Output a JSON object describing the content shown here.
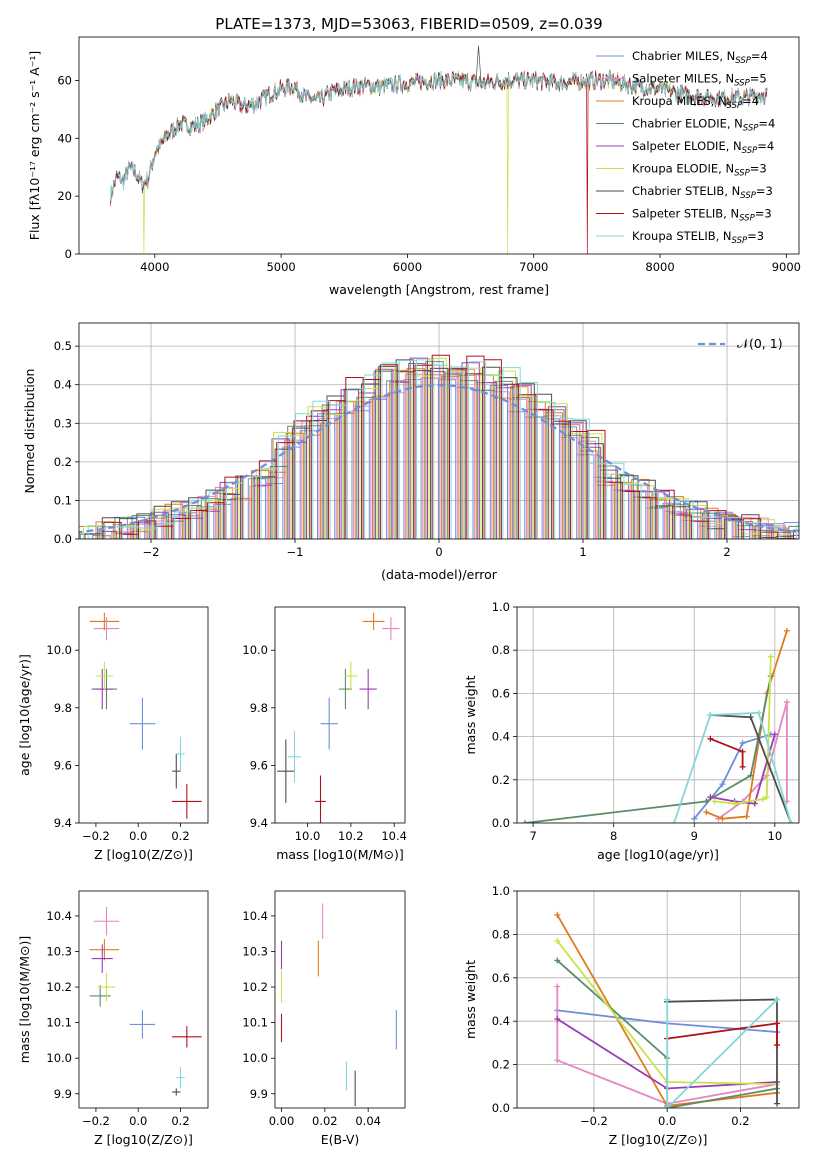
{
  "colors": {
    "Chabrier MILES": "#6f8fdc",
    "Salpeter MILES": "#e586c0",
    "Kroupa MILES": "#e07b1f",
    "Chabrier ELODIE": "#5b8c68",
    "Salpeter ELODIE": "#9b3bb8",
    "Kroupa ELODIE": "#c8e34a",
    "Chabrier STELIB": "#4d4d4d",
    "Salpeter STELIB": "#b0121a",
    "Kroupa STELIB": "#82d8db",
    "gaussian": "#6f8fdc"
  },
  "chart_data": [
    {
      "id": "spectrum",
      "type": "line",
      "title": "PLATE=1373, MJD=53063, FIBERID=0509, z=0.039",
      "xlabel": "wavelength [Angstrom, rest frame]",
      "ylabel": "Flux [fλ10⁻¹⁷ erg cm⁻² s⁻¹ A⁻¹]",
      "xlim": [
        3400,
        9100
      ],
      "ylim": [
        0,
        75
      ],
      "xticks": [
        4000,
        5000,
        6000,
        7000,
        8000,
        9000
      ],
      "yticks": [
        0,
        20,
        40,
        60
      ],
      "legend_position": "top-right",
      "legend": [
        "Chabrier MILES, N_SSP=4",
        "Salpeter MILES, N_SSP=5",
        "Kroupa MILES, N_SSP=4",
        "Chabrier ELODIE, N_SSP=4",
        "Salpeter ELODIE, N_SSP=4",
        "Kroupa ELODIE, N_SSP=3",
        "Chabrier STELIB, N_SSP=3",
        "Salpeter STELIB, N_SSP=3",
        "Kroupa STELIB, N_SSP=3"
      ],
      "continuum": {
        "x": [
          3650,
          3700,
          3750,
          3800,
          3850,
          3900,
          3950,
          4000,
          4100,
          4200,
          4300,
          4400,
          4500,
          4600,
          4700,
          4800,
          4900,
          5000,
          5100,
          5200,
          5300,
          5400,
          5500,
          5600,
          5800,
          6000,
          6200,
          6400,
          6600,
          6800,
          7000,
          7200,
          7400,
          7600,
          7800,
          8000,
          8200,
          8400,
          8600,
          8850
        ],
        "y": [
          20,
          27,
          25,
          30,
          28,
          24,
          26,
          35,
          41,
          45,
          44,
          46,
          50,
          53,
          51,
          52,
          55,
          57,
          58,
          54,
          53,
          56,
          57,
          58,
          58,
          59,
          60,
          60,
          59,
          60,
          60,
          59,
          60,
          60,
          58,
          57,
          55,
          54,
          54,
          55
        ]
      },
      "dropouts": [
        {
          "series": "Kroupa ELODIE",
          "from_x": 3910
        },
        {
          "series": "Kroupa ELODIE",
          "from_x": 6790
        },
        {
          "series": "Salpeter STELIB",
          "from_x": 7420
        }
      ],
      "spikes": [
        {
          "x": 6563,
          "y": 72
        }
      ]
    },
    {
      "id": "residuals",
      "type": "bar",
      "xlabel": "(data-model)/error",
      "ylabel": "Normed distribution",
      "xlim": [
        -2.5,
        2.5
      ],
      "ylim": [
        0,
        0.56
      ],
      "xticks": [
        -2,
        -1,
        0,
        1,
        2
      ],
      "yticks": [
        0.0,
        0.1,
        0.2,
        0.3,
        0.4,
        0.5
      ],
      "grid": true,
      "legend": [
        "𝒩(0, 1)"
      ],
      "legend_position": "top-right",
      "gaussian": {
        "mu": 0,
        "sigma": 1
      },
      "bin_width": 0.12
    },
    {
      "id": "age-vs-Z",
      "type": "scatter",
      "xlabel": "Z [log10(Z/Z⊙)]",
      "ylabel": "age  [log10(age/yr)]",
      "xlim": [
        -0.28,
        0.33
      ],
      "ylim": [
        9.4,
        10.15
      ],
      "xticks": [
        -0.2,
        0.0,
        0.2
      ],
      "yticks": [
        9.4,
        9.6,
        9.8,
        10.0
      ],
      "points": [
        {
          "series": "Chabrier MILES",
          "x": 0.02,
          "y": 9.745,
          "xerr": 0.06,
          "yerr": 0.09
        },
        {
          "series": "Salpeter MILES",
          "x": -0.15,
          "y": 10.075,
          "xerr": 0.06,
          "yerr": 0.04
        },
        {
          "series": "Kroupa MILES",
          "x": -0.16,
          "y": 10.1,
          "xerr": 0.07,
          "yerr": 0.03
        },
        {
          "series": "Chabrier ELODIE",
          "x": -0.15,
          "y": 9.865,
          "xerr": 0.05,
          "yerr": 0.07
        },
        {
          "series": "Salpeter ELODIE",
          "x": -0.17,
          "y": 9.865,
          "xerr": 0.05,
          "yerr": 0.07
        },
        {
          "series": "Kroupa ELODIE",
          "x": -0.16,
          "y": 9.91,
          "xerr": 0.04,
          "yerr": 0.05
        },
        {
          "series": "Chabrier STELIB",
          "x": 0.18,
          "y": 9.58,
          "xerr": 0.02,
          "yerr": 0.06
        },
        {
          "series": "Salpeter STELIB",
          "x": 0.23,
          "y": 9.475,
          "xerr": 0.07,
          "yerr": 0.06
        },
        {
          "series": "Kroupa STELIB",
          "x": 0.2,
          "y": 9.64,
          "xerr": 0.02,
          "yerr": 0.06
        }
      ]
    },
    {
      "id": "age-vs-mass",
      "type": "scatter",
      "xlabel": "mass [log10(M/M⊙)]",
      "xlim": [
        9.85,
        10.45
      ],
      "ylim": [
        9.4,
        10.15
      ],
      "xticks": [
        10.0,
        10.2,
        10.4
      ],
      "yticks": [
        9.4,
        9.6,
        9.8,
        10.0
      ],
      "points": [
        {
          "series": "Chabrier MILES",
          "x": 10.1,
          "y": 9.745,
          "xerr": 0.04,
          "yerr": 0.09
        },
        {
          "series": "Salpeter MILES",
          "x": 10.385,
          "y": 10.075,
          "xerr": 0.04,
          "yerr": 0.04
        },
        {
          "series": "Kroupa MILES",
          "x": 10.305,
          "y": 10.1,
          "xerr": 0.05,
          "yerr": 0.03
        },
        {
          "series": "Chabrier ELODIE",
          "x": 10.175,
          "y": 9.865,
          "xerr": 0.03,
          "yerr": 0.07
        },
        {
          "series": "Salpeter ELODIE",
          "x": 10.28,
          "y": 9.865,
          "xerr": 0.04,
          "yerr": 0.07
        },
        {
          "series": "Kroupa ELODIE",
          "x": 10.2,
          "y": 9.91,
          "xerr": 0.03,
          "yerr": 0.05
        },
        {
          "series": "Chabrier STELIB",
          "x": 9.9,
          "y": 9.58,
          "xerr": 0.04,
          "yerr": 0.11
        },
        {
          "series": "Salpeter STELIB",
          "x": 10.06,
          "y": 9.475,
          "xerr": 0.025,
          "yerr": 0.09
        },
        {
          "series": "Kroupa STELIB",
          "x": 9.94,
          "y": 9.63,
          "xerr": 0.03,
          "yerr": 0.09
        }
      ]
    },
    {
      "id": "mass-weight-vs-age",
      "type": "line",
      "xlabel": "age  [log10(age/yr)]",
      "ylabel": "mass weight",
      "xlim": [
        6.8,
        10.3
      ],
      "ylim": [
        0,
        1.0
      ],
      "xticks": [
        7,
        8,
        9,
        10
      ],
      "yticks": [
        0.0,
        0.2,
        0.4,
        0.6,
        0.8,
        1.0
      ],
      "grid": true,
      "series": [
        {
          "name": "Chabrier MILES",
          "x": [
            9.0,
            9.35,
            9.6,
            9.95
          ],
          "y": [
            0.02,
            0.18,
            0.37,
            0.41
          ]
        },
        {
          "name": "Salpeter MILES",
          "x": [
            9.3,
            9.6,
            9.9,
            10.15,
            10.15
          ],
          "y": [
            0.02,
            0.1,
            0.22,
            0.56,
            0.1
          ]
        },
        {
          "name": "Kroupa MILES",
          "x": [
            9.15,
            9.35,
            9.65,
            9.9,
            10.15
          ],
          "y": [
            0.05,
            0.02,
            0.03,
            0.6,
            0.89
          ]
        },
        {
          "name": "Chabrier ELODIE",
          "x": [
            6.9,
            9.15,
            9.7,
            9.95
          ],
          "y": [
            0.0,
            0.1,
            0.22,
            0.68
          ]
        },
        {
          "name": "Salpeter ELODIE",
          "x": [
            9.2,
            9.5,
            9.75,
            10.0
          ],
          "y": [
            0.12,
            0.1,
            0.09,
            0.41
          ]
        },
        {
          "name": "Kroupa ELODIE",
          "x": [
            9.25,
            9.5,
            9.85,
            9.9,
            9.95
          ],
          "y": [
            0.1,
            0.09,
            0.11,
            0.12,
            0.77
          ]
        },
        {
          "name": "Chabrier STELIB",
          "x": [
            9.2,
            9.7,
            10.2
          ],
          "y": [
            0.5,
            0.49,
            0.0
          ]
        },
        {
          "name": "Salpeter STELIB",
          "x": [
            9.2,
            9.6,
            9.6
          ],
          "y": [
            0.39,
            0.33,
            0.26
          ]
        },
        {
          "name": "Kroupa STELIB",
          "x": [
            8.75,
            9.2,
            9.8,
            10.2
          ],
          "y": [
            0.0,
            0.5,
            0.51,
            0.0
          ]
        }
      ]
    },
    {
      "id": "mass-vs-Z",
      "type": "scatter",
      "xlabel": "Z [log10(Z/Z⊙)]",
      "ylabel": "mass [log10(M/M⊙)]",
      "xlim": [
        -0.28,
        0.33
      ],
      "ylim": [
        9.86,
        10.47
      ],
      "xticks": [
        -0.2,
        0.0,
        0.2
      ],
      "yticks": [
        9.9,
        10.0,
        10.1,
        10.2,
        10.3,
        10.4
      ],
      "points": [
        {
          "series": "Chabrier MILES",
          "x": 0.02,
          "y": 10.095,
          "xerr": 0.06,
          "yerr": 0.04
        },
        {
          "series": "Salpeter MILES",
          "x": -0.15,
          "y": 10.385,
          "xerr": 0.06,
          "yerr": 0.04
        },
        {
          "series": "Kroupa MILES",
          "x": -0.16,
          "y": 10.305,
          "xerr": 0.07,
          "yerr": 0.03
        },
        {
          "series": "Chabrier ELODIE",
          "x": -0.18,
          "y": 10.175,
          "xerr": 0.05,
          "yerr": 0.03
        },
        {
          "series": "Salpeter ELODIE",
          "x": -0.17,
          "y": 10.28,
          "xerr": 0.05,
          "yerr": 0.04
        },
        {
          "series": "Kroupa ELODIE",
          "x": -0.15,
          "y": 10.2,
          "xerr": 0.04,
          "yerr": 0.04
        },
        {
          "series": "Chabrier STELIB",
          "x": 0.18,
          "y": 9.905,
          "xerr": 0.02,
          "yerr": 0.01
        },
        {
          "series": "Salpeter STELIB",
          "x": 0.23,
          "y": 10.06,
          "xerr": 0.07,
          "yerr": 0.03
        },
        {
          "series": "Kroupa STELIB",
          "x": 0.2,
          "y": 9.945,
          "xerr": 0.02,
          "yerr": 0.03
        }
      ]
    },
    {
      "id": "mass-vs-ebv",
      "type": "scatter",
      "xlabel": "E(B-V)",
      "xlim": [
        -0.003,
        0.057
      ],
      "ylim": [
        9.86,
        10.47
      ],
      "xticks": [
        0.0,
        0.02,
        0.04
      ],
      "yticks": [
        9.9,
        10.0,
        10.1,
        10.2,
        10.3,
        10.4
      ],
      "points": [
        {
          "series": "Chabrier MILES",
          "x": 0.053,
          "y": 10.08,
          "xerr": 0,
          "yerr": 0.055
        },
        {
          "series": "Salpeter MILES",
          "x": 0.019,
          "y": 10.385,
          "xerr": 0,
          "yerr": 0.05
        },
        {
          "series": "Kroupa MILES",
          "x": 0.017,
          "y": 10.28,
          "xerr": 0,
          "yerr": 0.05
        },
        {
          "series": "Salpeter ELODIE",
          "x": 0.0,
          "y": 10.29,
          "xerr": 0,
          "yerr": 0.04
        },
        {
          "series": "Kroupa ELODIE",
          "x": 0.0,
          "y": 10.2,
          "xerr": 0,
          "yerr": 0.045
        },
        {
          "series": "Chabrier STELIB",
          "x": 0.034,
          "y": 9.915,
          "xerr": 0,
          "yerr": 0.05
        },
        {
          "series": "Salpeter STELIB",
          "x": 0.0,
          "y": 10.085,
          "xerr": 0,
          "yerr": 0.04
        },
        {
          "series": "Kroupa STELIB",
          "x": 0.03,
          "y": 9.95,
          "xerr": 0,
          "yerr": 0.04
        }
      ]
    },
    {
      "id": "mass-weight-vs-Z",
      "type": "line",
      "xlabel": "Z [log10(Z/Z⊙)]",
      "ylabel": "mass weight",
      "xlim": [
        -0.41,
        0.36
      ],
      "ylim": [
        0,
        1.0
      ],
      "xticks": [
        -0.2,
        0.0,
        0.2
      ],
      "yticks": [
        0.0,
        0.2,
        0.4,
        0.6,
        0.8,
        1.0
      ],
      "grid": true,
      "series": [
        {
          "name": "Chabrier MILES",
          "x": [
            -0.3,
            0.0,
            0.3
          ],
          "y": [
            0.45,
            0.39,
            0.35
          ]
        },
        {
          "name": "Salpeter MILES",
          "x": [
            -0.3,
            -0.3,
            0.0,
            0.3
          ],
          "y": [
            0.56,
            0.22,
            0.02,
            0.11
          ]
        },
        {
          "name": "Kroupa MILES",
          "x": [
            -0.3,
            0.0,
            0.3
          ],
          "y": [
            0.89,
            0.01,
            0.07
          ]
        },
        {
          "name": "Chabrier ELODIE",
          "x": [
            -0.3,
            0.0,
            0.0,
            0.3
          ],
          "y": [
            0.68,
            0.23,
            0.0,
            0.09
          ]
        },
        {
          "name": "Salpeter ELODIE",
          "x": [
            -0.3,
            0.0,
            0.3
          ],
          "y": [
            0.41,
            0.09,
            0.12
          ]
        },
        {
          "name": "Kroupa ELODIE",
          "x": [
            -0.3,
            0.0,
            0.3
          ],
          "y": [
            0.77,
            0.12,
            0.11
          ]
        },
        {
          "name": "Chabrier STELIB",
          "x": [
            0.0,
            0.3,
            0.3
          ],
          "y": [
            0.49,
            0.5,
            0.02
          ]
        },
        {
          "name": "Salpeter STELIB",
          "x": [
            0.0,
            0.3,
            0.3
          ],
          "y": [
            0.32,
            0.39,
            0.29
          ]
        },
        {
          "name": "Kroupa STELIB",
          "x": [
            0.0,
            0.0,
            0.3
          ],
          "y": [
            0.5,
            0.0,
            0.5
          ]
        }
      ]
    }
  ]
}
